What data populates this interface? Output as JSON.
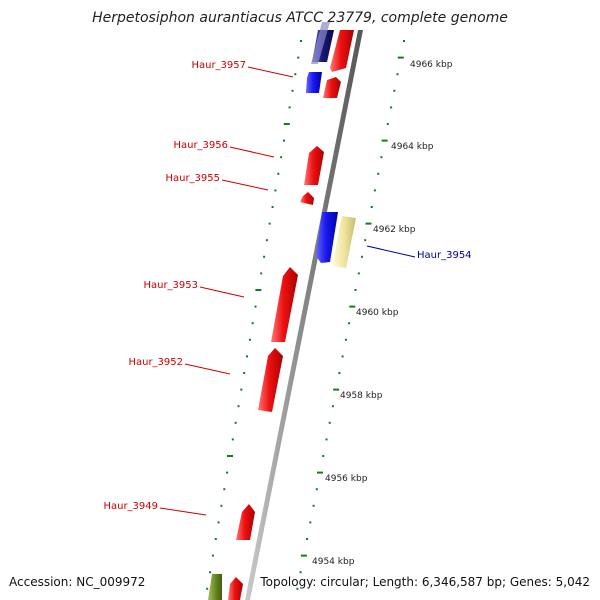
{
  "title": "Herpetosiphon aurantiacus ATCC 23779, complete genome",
  "footer": {
    "accession_label": "Accession:",
    "accession": "NC_009972",
    "topology_label": "Topology:",
    "topology": "circular",
    "length_label": "Length:",
    "length": "6,346,587 bp",
    "genes_label": "Genes:",
    "genes": "5,042"
  },
  "colors": {
    "label_red": "#cc0000",
    "label_blue": "#000099",
    "forward_gene": "#ee1111",
    "reverse_gene": "#1a1aee",
    "dark_blue_gene": "#1a1a7a",
    "pale_gene": "#f0e6a0",
    "olive_gene": "#6b8e23",
    "tick_green": "#1a7a1a",
    "backbone": "#888888"
  },
  "scale_ticks": [
    "4966 kbp",
    "4964 kbp",
    "4962 kbp",
    "4960 kbp",
    "4958 kbp",
    "4956 kbp",
    "4954 kbp"
  ],
  "gene_labels": [
    {
      "name": "Haur_3957",
      "color": "red"
    },
    {
      "name": "Haur_3956",
      "color": "red"
    },
    {
      "name": "Haur_3955",
      "color": "red"
    },
    {
      "name": "Haur_3954",
      "color": "blue"
    },
    {
      "name": "Haur_3953",
      "color": "red"
    },
    {
      "name": "Haur_3952",
      "color": "red"
    },
    {
      "name": "Haur_3949",
      "color": "red"
    }
  ]
}
